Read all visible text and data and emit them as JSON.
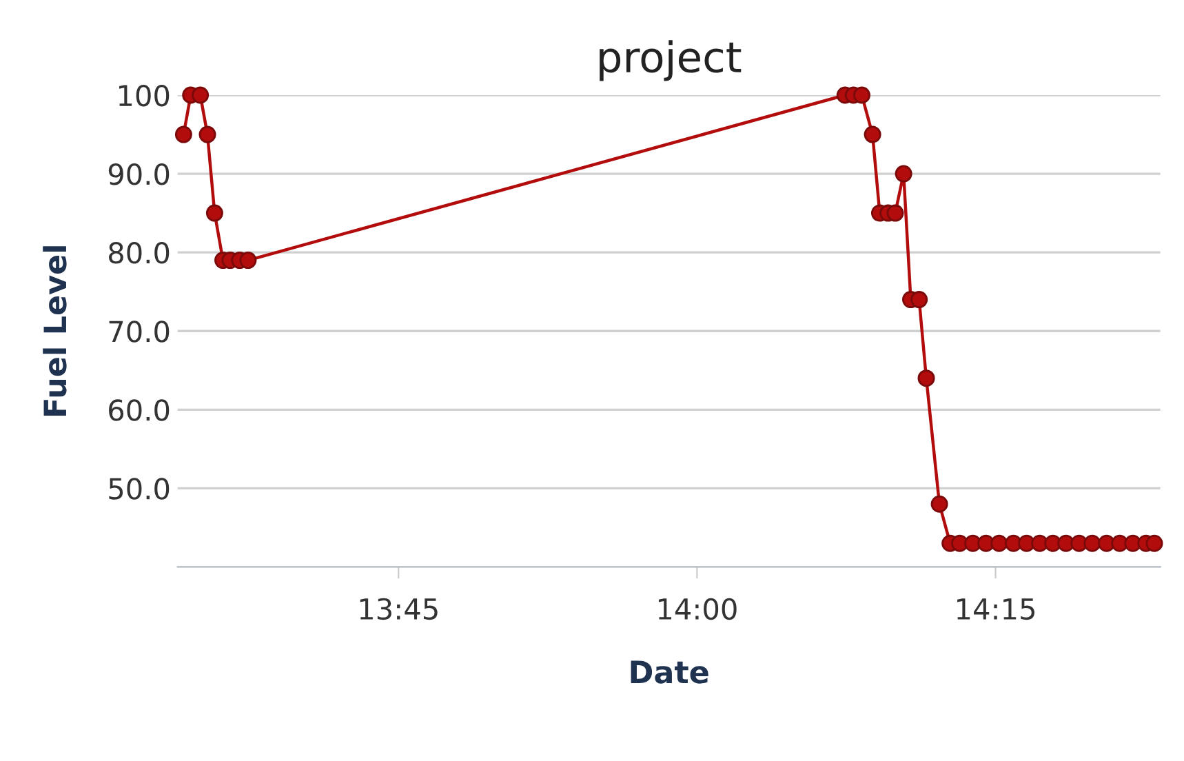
{
  "chart_data": {
    "type": "line",
    "title": "project",
    "xlabel": "Date",
    "ylabel": "Fuel Level",
    "series": [
      {
        "color": "#b20c0c",
        "x": [
          13.57,
          13.576,
          13.584,
          13.59,
          13.596,
          13.603,
          13.609,
          13.617,
          13.624,
          14.124,
          14.131,
          14.138,
          14.147,
          14.153,
          14.16,
          14.166,
          14.173,
          14.179,
          14.186,
          14.192,
          14.203,
          14.212,
          14.22,
          14.231,
          14.242,
          14.253,
          14.265,
          14.276,
          14.287,
          14.298,
          14.309,
          14.32,
          14.331,
          14.343,
          14.354,
          14.365,
          14.376,
          14.383
        ],
        "values": [
          95,
          100,
          100,
          95,
          85,
          79,
          79,
          79,
          79,
          100,
          100,
          100,
          95,
          85,
          85,
          85,
          90,
          74,
          74,
          64,
          48,
          43,
          43,
          43,
          43,
          43,
          43,
          43,
          43,
          43,
          43,
          43,
          43,
          43,
          43,
          43,
          43,
          43
        ]
      }
    ],
    "xlim": [
      13.565,
      14.388
    ],
    "xticks": [
      {
        "value": 13.75,
        "label": "13:45"
      },
      {
        "value": 14.0,
        "label": "14:00"
      },
      {
        "value": 14.25,
        "label": "14:15"
      }
    ],
    "ylim": [
      40,
      100
    ],
    "yticks": [
      {
        "value": 50,
        "label": "50.0"
      },
      {
        "value": 60,
        "label": "60.0"
      },
      {
        "value": 70,
        "label": "70.0"
      },
      {
        "value": 80,
        "label": "80.0"
      },
      {
        "value": 90,
        "label": "90.0"
      },
      100
    ],
    "grid": "y",
    "marker": "circle",
    "line_style": "solid"
  }
}
